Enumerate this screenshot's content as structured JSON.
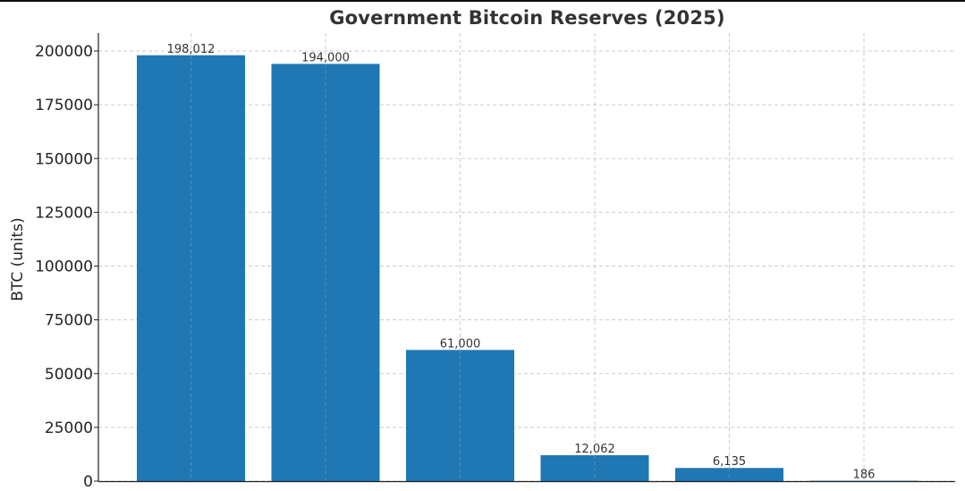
{
  "chart_data": {
    "type": "bar",
    "title": "Government Bitcoin Reserves (2025)",
    "xlabel": "",
    "ylabel": "BTC (units)",
    "ylim": [
      0,
      210000
    ],
    "yticks": [
      0,
      25000,
      50000,
      75000,
      100000,
      125000,
      150000,
      175000,
      200000
    ],
    "grid": true,
    "values": [
      198012,
      194000,
      61000,
      12062,
      6135,
      186
    ],
    "value_labels": [
      "198,012",
      "194,000",
      "61,000",
      "12,062",
      "6,135",
      "186"
    ],
    "colors": {
      "bar": "#1f77b4",
      "grid": "#cccccc",
      "axis": "#222222"
    }
  }
}
